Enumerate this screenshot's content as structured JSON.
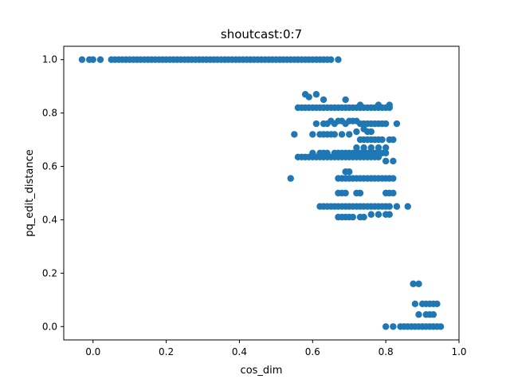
{
  "chart_data": {
    "type": "scatter",
    "title": "shoutcast:0:7",
    "xlabel": "cos_dim",
    "ylabel": "pq_edit_distance",
    "xlim": [
      -0.08,
      1.0
    ],
    "ylim": [
      -0.05,
      1.05
    ],
    "xticks": [
      0.0,
      0.2,
      0.4,
      0.6,
      0.8,
      1.0
    ],
    "xtick_labels": [
      "0.0",
      "0.2",
      "0.4",
      "0.6",
      "0.8",
      "1.0"
    ],
    "yticks": [
      0.0,
      0.2,
      0.4,
      0.6,
      0.8,
      1.0
    ],
    "ytick_labels": [
      "0.0",
      "0.2",
      "0.4",
      "0.6",
      "0.8",
      "1.0"
    ],
    "grid": false,
    "marker_color": "#1f77b4",
    "series": [
      {
        "points": [
          [
            -0.03,
            1.0
          ],
          [
            -0.01,
            1.0
          ],
          [
            0.0,
            1.0
          ],
          [
            0.02,
            1.0
          ],
          [
            0.05,
            1.0
          ],
          [
            0.06,
            1.0
          ],
          [
            0.07,
            1.0
          ],
          [
            0.08,
            1.0
          ],
          [
            0.09,
            1.0
          ],
          [
            0.1,
            1.0
          ],
          [
            0.11,
            1.0
          ],
          [
            0.12,
            1.0
          ],
          [
            0.13,
            1.0
          ],
          [
            0.14,
            1.0
          ],
          [
            0.15,
            1.0
          ],
          [
            0.16,
            1.0
          ],
          [
            0.17,
            1.0
          ],
          [
            0.18,
            1.0
          ],
          [
            0.19,
            1.0
          ],
          [
            0.2,
            1.0
          ],
          [
            0.21,
            1.0
          ],
          [
            0.22,
            1.0
          ],
          [
            0.23,
            1.0
          ],
          [
            0.24,
            1.0
          ],
          [
            0.25,
            1.0
          ],
          [
            0.26,
            1.0
          ],
          [
            0.27,
            1.0
          ],
          [
            0.28,
            1.0
          ],
          [
            0.29,
            1.0
          ],
          [
            0.3,
            1.0
          ],
          [
            0.31,
            1.0
          ],
          [
            0.32,
            1.0
          ],
          [
            0.33,
            1.0
          ],
          [
            0.34,
            1.0
          ],
          [
            0.35,
            1.0
          ],
          [
            0.36,
            1.0
          ],
          [
            0.37,
            1.0
          ],
          [
            0.38,
            1.0
          ],
          [
            0.39,
            1.0
          ],
          [
            0.4,
            1.0
          ],
          [
            0.41,
            1.0
          ],
          [
            0.42,
            1.0
          ],
          [
            0.43,
            1.0
          ],
          [
            0.44,
            1.0
          ],
          [
            0.45,
            1.0
          ],
          [
            0.46,
            1.0
          ],
          [
            0.47,
            1.0
          ],
          [
            0.48,
            1.0
          ],
          [
            0.49,
            1.0
          ],
          [
            0.5,
            1.0
          ],
          [
            0.51,
            1.0
          ],
          [
            0.52,
            1.0
          ],
          [
            0.53,
            1.0
          ],
          [
            0.54,
            1.0
          ],
          [
            0.55,
            1.0
          ],
          [
            0.56,
            1.0
          ],
          [
            0.57,
            1.0
          ],
          [
            0.58,
            1.0
          ],
          [
            0.59,
            1.0
          ],
          [
            0.6,
            1.0
          ],
          [
            0.61,
            1.0
          ],
          [
            0.62,
            1.0
          ],
          [
            0.63,
            1.0
          ],
          [
            0.64,
            1.0
          ],
          [
            0.65,
            1.0
          ],
          [
            0.67,
            1.0
          ],
          [
            0.58,
            0.87
          ],
          [
            0.61,
            0.87
          ],
          [
            0.59,
            0.86
          ],
          [
            0.63,
            0.85
          ],
          [
            0.69,
            0.85
          ],
          [
            0.56,
            0.82
          ],
          [
            0.57,
            0.82
          ],
          [
            0.58,
            0.82
          ],
          [
            0.59,
            0.82
          ],
          [
            0.6,
            0.82
          ],
          [
            0.61,
            0.82
          ],
          [
            0.62,
            0.82
          ],
          [
            0.63,
            0.82
          ],
          [
            0.64,
            0.82
          ],
          [
            0.65,
            0.82
          ],
          [
            0.66,
            0.82
          ],
          [
            0.67,
            0.82
          ],
          [
            0.68,
            0.82
          ],
          [
            0.69,
            0.82
          ],
          [
            0.7,
            0.82
          ],
          [
            0.71,
            0.82
          ],
          [
            0.72,
            0.82
          ],
          [
            0.73,
            0.82
          ],
          [
            0.74,
            0.82
          ],
          [
            0.75,
            0.82
          ],
          [
            0.76,
            0.82
          ],
          [
            0.77,
            0.82
          ],
          [
            0.78,
            0.82
          ],
          [
            0.79,
            0.82
          ],
          [
            0.8,
            0.82
          ],
          [
            0.81,
            0.82
          ],
          [
            0.73,
            0.83
          ],
          [
            0.78,
            0.83
          ],
          [
            0.81,
            0.83
          ],
          [
            0.61,
            0.76
          ],
          [
            0.63,
            0.76
          ],
          [
            0.64,
            0.76
          ],
          [
            0.65,
            0.77
          ],
          [
            0.66,
            0.76
          ],
          [
            0.67,
            0.77
          ],
          [
            0.68,
            0.77
          ],
          [
            0.69,
            0.76
          ],
          [
            0.7,
            0.77
          ],
          [
            0.71,
            0.77
          ],
          [
            0.72,
            0.77
          ],
          [
            0.73,
            0.76
          ],
          [
            0.74,
            0.76
          ],
          [
            0.75,
            0.76
          ],
          [
            0.76,
            0.76
          ],
          [
            0.77,
            0.76
          ],
          [
            0.78,
            0.76
          ],
          [
            0.79,
            0.76
          ],
          [
            0.8,
            0.76
          ],
          [
            0.83,
            0.76
          ],
          [
            0.6,
            0.72
          ],
          [
            0.62,
            0.72
          ],
          [
            0.63,
            0.72
          ],
          [
            0.64,
            0.72
          ],
          [
            0.65,
            0.72
          ],
          [
            0.66,
            0.72
          ],
          [
            0.68,
            0.72
          ],
          [
            0.7,
            0.72
          ],
          [
            0.72,
            0.73
          ],
          [
            0.74,
            0.74
          ],
          [
            0.75,
            0.73
          ],
          [
            0.76,
            0.73
          ],
          [
            0.55,
            0.72
          ],
          [
            0.73,
            0.7
          ],
          [
            0.74,
            0.7
          ],
          [
            0.75,
            0.7
          ],
          [
            0.76,
            0.7
          ],
          [
            0.77,
            0.7
          ],
          [
            0.78,
            0.7
          ],
          [
            0.79,
            0.7
          ],
          [
            0.81,
            0.7
          ],
          [
            0.82,
            0.7
          ],
          [
            0.72,
            0.67
          ],
          [
            0.74,
            0.67
          ],
          [
            0.76,
            0.67
          ],
          [
            0.78,
            0.67
          ],
          [
            0.8,
            0.67
          ],
          [
            0.6,
            0.65
          ],
          [
            0.62,
            0.65
          ],
          [
            0.63,
            0.65
          ],
          [
            0.64,
            0.65
          ],
          [
            0.66,
            0.65
          ],
          [
            0.67,
            0.65
          ],
          [
            0.68,
            0.65
          ],
          [
            0.69,
            0.65
          ],
          [
            0.7,
            0.65
          ],
          [
            0.71,
            0.65
          ],
          [
            0.72,
            0.65
          ],
          [
            0.73,
            0.65
          ],
          [
            0.74,
            0.65
          ],
          [
            0.75,
            0.65
          ],
          [
            0.76,
            0.65
          ],
          [
            0.77,
            0.65
          ],
          [
            0.78,
            0.65
          ],
          [
            0.79,
            0.65
          ],
          [
            0.8,
            0.65
          ],
          [
            0.56,
            0.635
          ],
          [
            0.57,
            0.635
          ],
          [
            0.58,
            0.635
          ],
          [
            0.59,
            0.635
          ],
          [
            0.6,
            0.635
          ],
          [
            0.61,
            0.635
          ],
          [
            0.62,
            0.635
          ],
          [
            0.63,
            0.635
          ],
          [
            0.64,
            0.635
          ],
          [
            0.65,
            0.635
          ],
          [
            0.66,
            0.635
          ],
          [
            0.67,
            0.635
          ],
          [
            0.68,
            0.635
          ],
          [
            0.69,
            0.635
          ],
          [
            0.7,
            0.635
          ],
          [
            0.71,
            0.635
          ],
          [
            0.72,
            0.635
          ],
          [
            0.73,
            0.635
          ],
          [
            0.74,
            0.635
          ],
          [
            0.75,
            0.635
          ],
          [
            0.76,
            0.635
          ],
          [
            0.77,
            0.635
          ],
          [
            0.78,
            0.635
          ],
          [
            0.8,
            0.62
          ],
          [
            0.82,
            0.62
          ],
          [
            0.69,
            0.58
          ],
          [
            0.7,
            0.58
          ],
          [
            0.67,
            0.555
          ],
          [
            0.68,
            0.555
          ],
          [
            0.69,
            0.555
          ],
          [
            0.7,
            0.555
          ],
          [
            0.71,
            0.555
          ],
          [
            0.72,
            0.555
          ],
          [
            0.73,
            0.555
          ],
          [
            0.74,
            0.555
          ],
          [
            0.75,
            0.555
          ],
          [
            0.76,
            0.555
          ],
          [
            0.77,
            0.555
          ],
          [
            0.78,
            0.555
          ],
          [
            0.79,
            0.555
          ],
          [
            0.8,
            0.555
          ],
          [
            0.81,
            0.555
          ],
          [
            0.82,
            0.555
          ],
          [
            0.54,
            0.555
          ],
          [
            0.67,
            0.5
          ],
          [
            0.68,
            0.5
          ],
          [
            0.69,
            0.5
          ],
          [
            0.72,
            0.5
          ],
          [
            0.73,
            0.5
          ],
          [
            0.8,
            0.5
          ],
          [
            0.81,
            0.5
          ],
          [
            0.82,
            0.5
          ],
          [
            0.62,
            0.45
          ],
          [
            0.63,
            0.45
          ],
          [
            0.64,
            0.45
          ],
          [
            0.65,
            0.45
          ],
          [
            0.66,
            0.45
          ],
          [
            0.67,
            0.45
          ],
          [
            0.68,
            0.45
          ],
          [
            0.69,
            0.45
          ],
          [
            0.7,
            0.45
          ],
          [
            0.71,
            0.45
          ],
          [
            0.72,
            0.45
          ],
          [
            0.73,
            0.45
          ],
          [
            0.74,
            0.45
          ],
          [
            0.75,
            0.45
          ],
          [
            0.76,
            0.45
          ],
          [
            0.77,
            0.45
          ],
          [
            0.78,
            0.45
          ],
          [
            0.79,
            0.45
          ],
          [
            0.8,
            0.45
          ],
          [
            0.81,
            0.45
          ],
          [
            0.83,
            0.45
          ],
          [
            0.86,
            0.45
          ],
          [
            0.67,
            0.41
          ],
          [
            0.68,
            0.41
          ],
          [
            0.69,
            0.41
          ],
          [
            0.7,
            0.41
          ],
          [
            0.71,
            0.41
          ],
          [
            0.73,
            0.41
          ],
          [
            0.74,
            0.41
          ],
          [
            0.76,
            0.42
          ],
          [
            0.78,
            0.42
          ],
          [
            0.8,
            0.42
          ],
          [
            0.81,
            0.42
          ],
          [
            0.875,
            0.16
          ],
          [
            0.89,
            0.16
          ],
          [
            0.88,
            0.085
          ],
          [
            0.9,
            0.085
          ],
          [
            0.91,
            0.085
          ],
          [
            0.92,
            0.085
          ],
          [
            0.93,
            0.085
          ],
          [
            0.94,
            0.085
          ],
          [
            0.89,
            0.045
          ],
          [
            0.91,
            0.045
          ],
          [
            0.92,
            0.045
          ],
          [
            0.93,
            0.045
          ],
          [
            0.8,
            0.0
          ],
          [
            0.82,
            0.0
          ],
          [
            0.84,
            0.0
          ],
          [
            0.85,
            0.0
          ],
          [
            0.86,
            0.0
          ],
          [
            0.87,
            0.0
          ],
          [
            0.88,
            0.0
          ],
          [
            0.89,
            0.0
          ],
          [
            0.9,
            0.0
          ],
          [
            0.91,
            0.0
          ],
          [
            0.92,
            0.0
          ],
          [
            0.93,
            0.0
          ],
          [
            0.94,
            0.0
          ],
          [
            0.95,
            0.0
          ]
        ]
      }
    ]
  }
}
